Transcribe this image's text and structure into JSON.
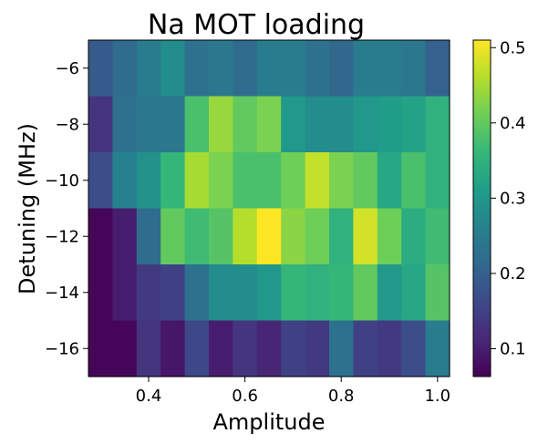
{
  "chart_data": {
    "type": "heatmap",
    "title": "Na MOT loading",
    "xlabel": "Amplitude",
    "ylabel": "Detuning (MHz)",
    "xlim": [
      0.275,
      1.025
    ],
    "ylim": [
      -17,
      -5
    ],
    "x_centers": [
      0.3,
      0.35,
      0.4,
      0.45,
      0.5,
      0.55,
      0.6,
      0.65,
      0.7,
      0.75,
      0.8,
      0.85,
      0.9,
      0.95,
      1.0
    ],
    "y_centers": [
      -6,
      -8,
      -10,
      -12,
      -14,
      -16
    ],
    "x_ticks": [
      0.4,
      0.6,
      0.8,
      1.0
    ],
    "x_tick_labels": [
      "0.4",
      "0.6",
      "0.8",
      "1.0"
    ],
    "y_ticks": [
      -6,
      -8,
      -10,
      -12,
      -14,
      -16
    ],
    "y_tick_labels": [
      "−6",
      "−8",
      "−10",
      "−12",
      "−14",
      "−16"
    ],
    "values": [
      [
        0.19,
        0.22,
        0.25,
        0.28,
        0.23,
        0.24,
        0.22,
        0.25,
        0.25,
        0.23,
        0.21,
        0.25,
        0.25,
        0.24,
        0.2
      ],
      [
        0.13,
        0.23,
        0.24,
        0.24,
        0.38,
        0.44,
        0.4,
        0.42,
        0.3,
        0.28,
        0.28,
        0.3,
        0.31,
        0.32,
        0.35
      ],
      [
        0.17,
        0.26,
        0.29,
        0.36,
        0.45,
        0.42,
        0.38,
        0.38,
        0.41,
        0.47,
        0.42,
        0.4,
        0.33,
        0.38,
        0.35
      ],
      [
        0.07,
        0.1,
        0.22,
        0.4,
        0.37,
        0.39,
        0.46,
        0.51,
        0.43,
        0.41,
        0.35,
        0.48,
        0.41,
        0.34,
        0.37
      ],
      [
        0.07,
        0.1,
        0.14,
        0.15,
        0.23,
        0.28,
        0.28,
        0.3,
        0.36,
        0.35,
        0.36,
        0.4,
        0.3,
        0.33,
        0.39
      ],
      [
        0.07,
        0.07,
        0.13,
        0.09,
        0.16,
        0.1,
        0.13,
        0.11,
        0.15,
        0.14,
        0.23,
        0.15,
        0.14,
        0.17,
        0.25
      ]
    ],
    "colormap": "viridis",
    "colorbar": {
      "vmin": 0.063,
      "vmax": 0.51,
      "ticks": [
        0.1,
        0.2,
        0.3,
        0.4,
        0.5
      ],
      "tick_labels": [
        "0.1",
        "0.2",
        "0.3",
        "0.4",
        "0.5"
      ]
    },
    "grid": false
  }
}
